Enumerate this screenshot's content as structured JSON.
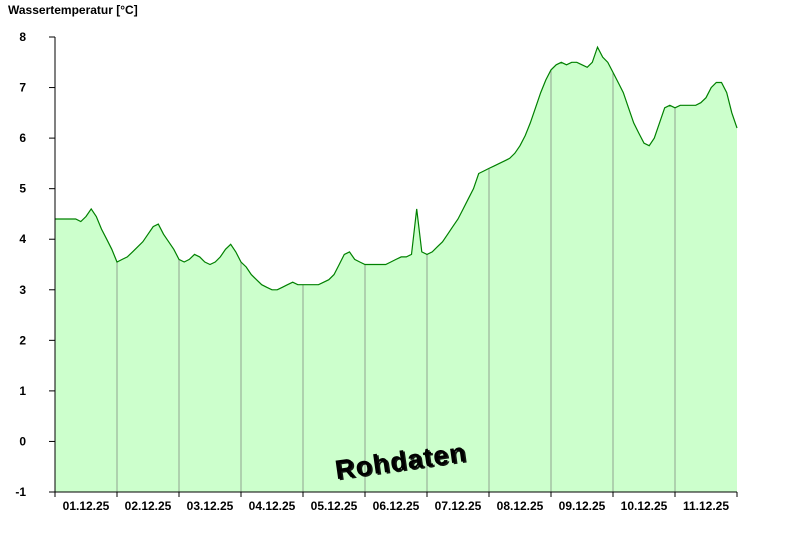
{
  "chart": {
    "title": "Wassertemperatur [°C]",
    "watermark": "Rohdaten"
  },
  "chart_data": {
    "type": "area",
    "title": "Wassertemperatur [°C]",
    "xlabel": "",
    "ylabel": "Wassertemperatur [°C]",
    "ylim": [
      -1,
      8
    ],
    "y_ticks": [
      -1,
      0,
      1,
      2,
      3,
      4,
      5,
      6,
      7,
      8
    ],
    "x_tick_labels": [
      "01.12.25",
      "02.12.25",
      "03.12.25",
      "04.12.25",
      "05.12.25",
      "06.12.25",
      "07.12.25",
      "08.12.25",
      "09.12.25",
      "10.12.25",
      "11.12.25"
    ],
    "points_per_day": 12,
    "grid": "vertical-day-lines",
    "legend": "none",
    "series": [
      {
        "name": "Wassertemperatur Rohdaten",
        "values": [
          4.4,
          4.4,
          4.4,
          4.4,
          4.4,
          4.35,
          4.45,
          4.6,
          4.45,
          4.2,
          4.0,
          3.8,
          3.55,
          3.6,
          3.65,
          3.75,
          3.85,
          3.95,
          4.1,
          4.25,
          4.3,
          4.1,
          3.95,
          3.8,
          3.6,
          3.55,
          3.6,
          3.7,
          3.65,
          3.55,
          3.5,
          3.55,
          3.65,
          3.8,
          3.9,
          3.75,
          3.55,
          3.45,
          3.3,
          3.2,
          3.1,
          3.05,
          3.0,
          3.0,
          3.05,
          3.1,
          3.15,
          3.1,
          3.1,
          3.1,
          3.1,
          3.1,
          3.15,
          3.2,
          3.3,
          3.5,
          3.7,
          3.75,
          3.6,
          3.55,
          3.5,
          3.5,
          3.5,
          3.5,
          3.5,
          3.55,
          3.6,
          3.65,
          3.65,
          3.7,
          4.6,
          3.75,
          3.7,
          3.75,
          3.85,
          3.95,
          4.1,
          4.25,
          4.4,
          4.6,
          4.8,
          5.0,
          5.3,
          5.35,
          5.4,
          5.45,
          5.5,
          5.55,
          5.6,
          5.7,
          5.85,
          6.05,
          6.3,
          6.6,
          6.9,
          7.15,
          7.35,
          7.45,
          7.5,
          7.45,
          7.5,
          7.5,
          7.45,
          7.4,
          7.5,
          7.8,
          7.6,
          7.5,
          7.3,
          7.1,
          6.9,
          6.6,
          6.3,
          6.1,
          5.9,
          5.85,
          6.0,
          6.3,
          6.6,
          6.65,
          6.6,
          6.65,
          6.65,
          6.65,
          6.65,
          6.7,
          6.8,
          7.0,
          7.1,
          7.1,
          6.9,
          6.5,
          6.2
        ]
      }
    ],
    "colors": {
      "fill": "#ccffcc",
      "line": "#008000",
      "grid": "#8fa38f",
      "axis": "#000000",
      "watermark": "#8c8c8c",
      "watermark_highlight": "#ffffff"
    }
  }
}
